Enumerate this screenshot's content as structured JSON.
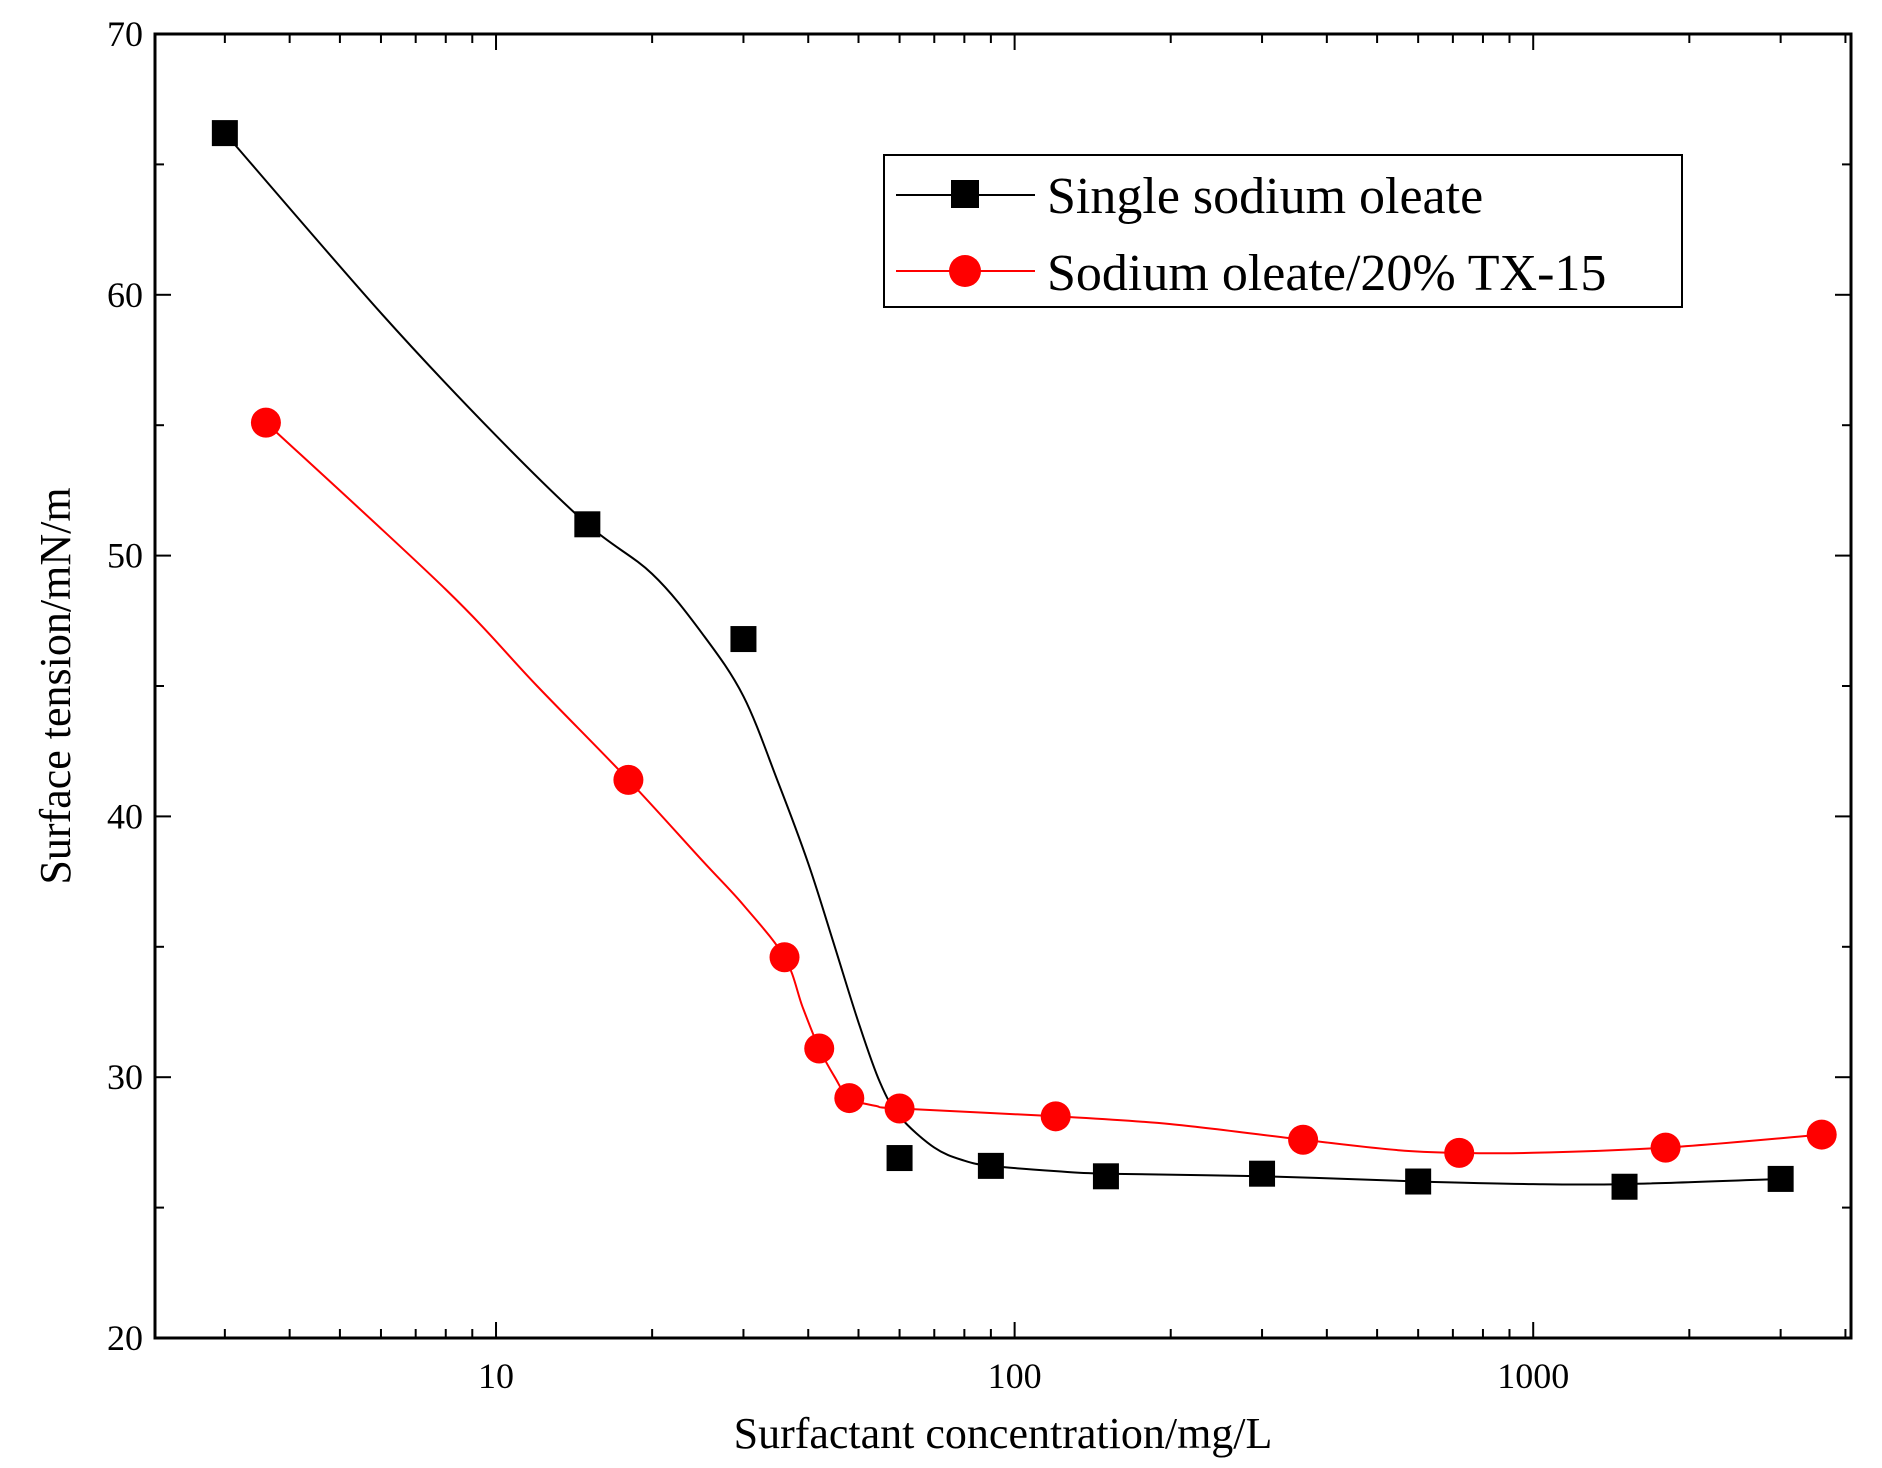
{
  "chart_data": {
    "type": "scatter",
    "title": "",
    "xlabel": "Surfactant concentration/mg/L",
    "ylabel": "Surface tension/mN/m",
    "xscale": "log",
    "xlim": [
      2.2,
      4100
    ],
    "ylim": [
      20,
      70
    ],
    "xticks": [
      {
        "value": 10,
        "label": "10"
      },
      {
        "value": 100,
        "label": "100"
      },
      {
        "value": 1000,
        "label": "1000"
      }
    ],
    "yticks": [
      {
        "value": 20,
        "label": "20"
      },
      {
        "value": 30,
        "label": "30"
      },
      {
        "value": 40,
        "label": "40"
      },
      {
        "value": 50,
        "label": "50"
      },
      {
        "value": 60,
        "label": "60"
      },
      {
        "value": 70,
        "label": "70"
      }
    ],
    "grid": false,
    "legend_position": "top-right",
    "series": [
      {
        "name": "Single sodium oleate",
        "marker": "square",
        "color": "#000000",
        "x": [
          3,
          15,
          30,
          60,
          90,
          150,
          300,
          600,
          1500,
          3000
        ],
        "y": [
          66.2,
          51.2,
          46.8,
          26.9,
          26.6,
          26.2,
          26.3,
          26.0,
          25.8,
          26.1
        ],
        "curve": [
          [
            3,
            66.2
          ],
          [
            6,
            59.3
          ],
          [
            10,
            54.6
          ],
          [
            15,
            51.2
          ],
          [
            20,
            49.3
          ],
          [
            25,
            47
          ],
          [
            30,
            44.6
          ],
          [
            35,
            41.3
          ],
          [
            40,
            38.2
          ],
          [
            45,
            35
          ],
          [
            50,
            32.1
          ],
          [
            55,
            29.8
          ],
          [
            60,
            28.5
          ],
          [
            70,
            27.3
          ],
          [
            80,
            26.8
          ],
          [
            90,
            26.6
          ],
          [
            120,
            26.4
          ],
          [
            150,
            26.3
          ],
          [
            300,
            26.2
          ],
          [
            600,
            26.0
          ],
          [
            1000,
            25.9
          ],
          [
            1500,
            25.9
          ],
          [
            3000,
            26.1
          ]
        ]
      },
      {
        "name": "Sodium oleate/20% TX-15",
        "marker": "circle",
        "color": "#ff0000",
        "x": [
          3.6,
          18,
          36,
          42,
          48,
          60,
          120,
          360,
          720,
          1800,
          3600
        ],
        "y": [
          55.1,
          41.4,
          34.6,
          31.1,
          29.2,
          28.8,
          28.5,
          27.6,
          27.1,
          27.3,
          27.8
        ],
        "curve": [
          [
            3.6,
            55.1
          ],
          [
            8,
            48.7
          ],
          [
            12,
            45
          ],
          [
            18,
            41.4
          ],
          [
            25,
            38.3
          ],
          [
            30,
            36.6
          ],
          [
            36,
            34.6
          ],
          [
            39,
            32.7
          ],
          [
            42,
            31.1
          ],
          [
            45,
            30
          ],
          [
            48,
            29.2
          ],
          [
            54,
            28.9
          ],
          [
            60,
            28.8
          ],
          [
            120,
            28.5
          ],
          [
            200,
            28.2
          ],
          [
            360,
            27.6
          ],
          [
            550,
            27.2
          ],
          [
            720,
            27.1
          ],
          [
            1000,
            27.1
          ],
          [
            1800,
            27.3
          ],
          [
            3600,
            27.8
          ]
        ]
      }
    ]
  }
}
